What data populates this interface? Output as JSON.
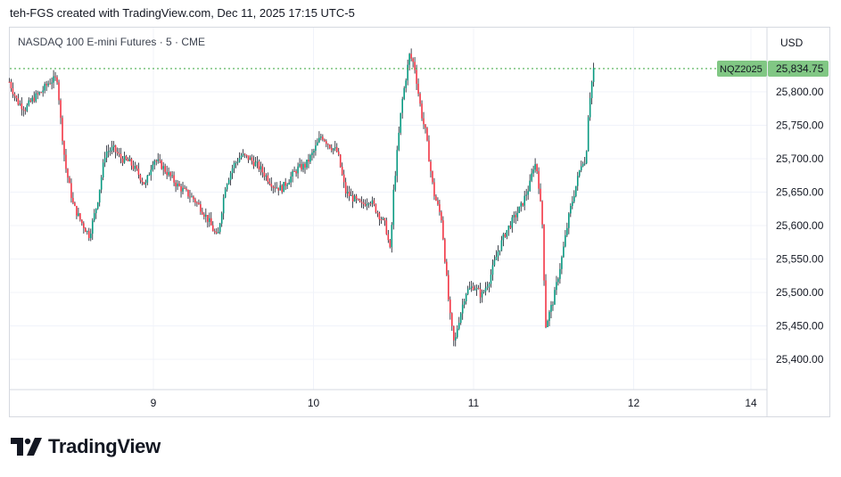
{
  "header": {
    "credit": "teh-FGS created with TradingView.com, Dec 11, 2025 17:15 UTC-5"
  },
  "chart_header": {
    "symbol_label": "NASDAQ 100 E-mini Futures · 5 · CME",
    "currency": "USD"
  },
  "price_tag": {
    "ticker": "NQZ2025",
    "price": "25,834.75",
    "color": "#81c784",
    "value": 25834.75
  },
  "colors": {
    "up": "#089981",
    "down": "#f23645",
    "wick": "#131722",
    "grid": "#f0f3fa",
    "axis": "#d6d9e0"
  },
  "brand": {
    "name": "TradingView",
    "logo_icon": "tradingview-logo-icon"
  },
  "chart_data": {
    "type": "line",
    "title": "NASDAQ 100 E-mini Futures · 5 · CME",
    "subtitle": "",
    "xlabel": "",
    "ylabel": "",
    "currency": "USD",
    "ylim": [
      25355,
      25905
    ],
    "xlim": [
      8.1,
      14.1
    ],
    "grid": true,
    "y_ticks": [
      {
        "value": 25400,
        "label": "25,400.00"
      },
      {
        "value": 25450,
        "label": "25,450.00"
      },
      {
        "value": 25500,
        "label": "25,500.00"
      },
      {
        "value": 25550,
        "label": "25,550.00"
      },
      {
        "value": 25600,
        "label": "25,600.00"
      },
      {
        "value": 25650,
        "label": "25,650.00"
      },
      {
        "value": 25700,
        "label": "25,700.00"
      },
      {
        "value": 25750,
        "label": "25,750.00"
      },
      {
        "value": 25800,
        "label": "25,800.00"
      }
    ],
    "x_ticks": [
      {
        "value": 9,
        "label": "9"
      },
      {
        "value": 10,
        "label": "10"
      },
      {
        "value": 11,
        "label": "11"
      },
      {
        "value": 12,
        "label": "12"
      },
      {
        "value": 14,
        "label": "14"
      }
    ],
    "last_price": 25834.75,
    "series": [
      {
        "x": [
          8.1,
          8.15,
          8.2,
          8.25,
          8.3,
          8.35,
          8.4,
          8.42,
          8.45,
          8.5,
          8.55,
          8.6,
          8.65,
          8.7,
          8.75,
          8.8,
          8.85,
          8.9,
          8.95,
          9.0,
          9.05,
          9.1,
          9.15,
          9.2,
          9.25,
          9.3,
          9.35,
          9.4,
          9.45,
          9.5,
          9.55,
          9.6,
          9.65,
          9.7,
          9.75,
          9.8,
          9.85,
          9.9,
          9.95,
          10.0,
          10.05,
          10.1,
          10.15,
          10.2,
          10.25,
          10.3,
          10.35,
          10.4,
          10.45,
          10.48,
          10.5,
          10.55,
          10.6,
          10.63,
          10.66,
          10.68,
          10.7,
          10.75,
          10.8,
          10.85,
          10.88,
          10.9,
          10.95,
          11.0,
          11.05,
          11.1,
          11.15,
          11.2,
          11.25,
          11.3,
          11.35,
          11.38,
          11.4,
          11.43,
          11.45,
          11.5,
          11.55,
          11.6,
          11.65,
          11.68,
          11.7,
          11.72,
          11.75
        ],
        "y": [
          25815,
          25785,
          25775,
          25790,
          25800,
          25815,
          25820,
          25760,
          25690,
          25630,
          25605,
          25585,
          25635,
          25710,
          25715,
          25700,
          25695,
          25680,
          25660,
          25700,
          25690,
          25675,
          25660,
          25650,
          25640,
          25625,
          25605,
          25580,
          25660,
          25690,
          25705,
          25700,
          25690,
          25675,
          25660,
          25655,
          25670,
          25685,
          25690,
          25710,
          25735,
          25720,
          25710,
          25650,
          25640,
          25630,
          25640,
          25620,
          25600,
          25560,
          25650,
          25780,
          25855,
          25840,
          25790,
          25760,
          25740,
          25650,
          25610,
          25470,
          25420,
          25450,
          25500,
          25510,
          25495,
          25520,
          25560,
          25590,
          25610,
          25630,
          25660,
          25695,
          25680,
          25600,
          25450,
          25490,
          25550,
          25620,
          25670,
          25700,
          25690,
          25780,
          25834.75
        ]
      }
    ]
  }
}
